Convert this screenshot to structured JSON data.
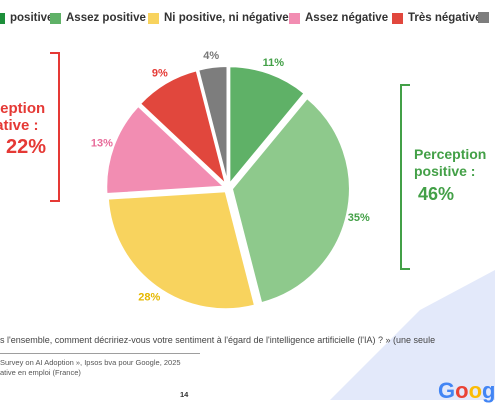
{
  "colors": {
    "tres_positive": "#1d8f3a",
    "assez_positive": "#5fb167",
    "neutre": "#f8d35e",
    "assez_negative": "#f28db2",
    "tres_negative": "#e1473d",
    "nsp": "#7d7d7d",
    "negative_accent": "#e53935",
    "positive_accent": "#43a047",
    "deco_blue": "#4f73d6"
  },
  "legend": [
    {
      "label": "positive",
      "color": "#1d8f3a"
    },
    {
      "label": "Assez positive",
      "color": "#5fb167"
    },
    {
      "label": "Ni positive, ni négative",
      "color": "#f8d35e"
    },
    {
      "label": "Assez négative",
      "color": "#f28db2"
    },
    {
      "label": "Très négative",
      "color": "#e1473d"
    },
    {
      "label": "",
      "color": "#7d7d7d"
    }
  ],
  "chart_data": {
    "type": "pie",
    "slices": [
      {
        "name": "Très positive",
        "value": 11,
        "label": "11%",
        "color": "#5fb167"
      },
      {
        "name": "Assez positive",
        "value": 35,
        "label": "35%",
        "color": "#8ec98c"
      },
      {
        "name": "Ni positive, ni négative",
        "value": 28,
        "label": "28%",
        "color": "#f8d35e"
      },
      {
        "name": "Assez négative",
        "value": 13,
        "label": "13%",
        "color": "#f28db2"
      },
      {
        "name": "Très négative",
        "value": 9,
        "label": "9%",
        "color": "#e1473d"
      },
      {
        "name": "",
        "value": 4,
        "label": "4%",
        "color": "#7d7d7d"
      }
    ],
    "negative_group": {
      "label_line1": "rception",
      "label_line2": "gative :",
      "value": "22%"
    },
    "positive_group": {
      "label_line1": "Perception",
      "label_line2": "positive :",
      "value": "46%"
    }
  },
  "question": "s l'ensemble, comment décririez-vous votre sentiment à l'égard de l'intelligence artificielle (l'IA) ? » (une seule",
  "source_line1": "Survey on AI Adoption », Ipsos bva pour Google, 2025",
  "source_line2": "ative en emploi (France)",
  "page_number": "14",
  "brand": "Goog"
}
